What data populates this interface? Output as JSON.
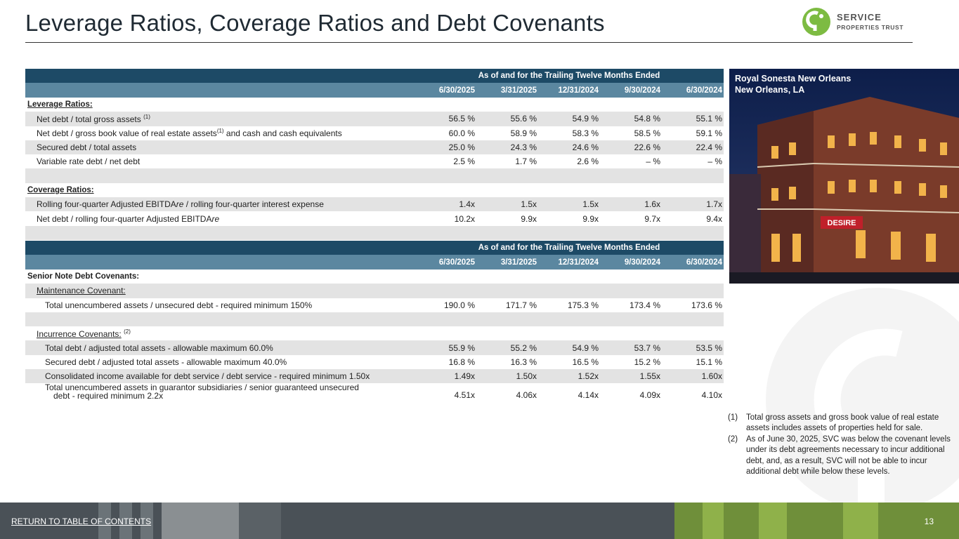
{
  "title": "Leverage Ratios, Coverage Ratios and Debt Covenants",
  "logo": {
    "line1": "SERVICE",
    "line2": "PROPERTIES TRUST"
  },
  "table1": {
    "header": "As of and for the Trailing Twelve Months Ended",
    "dates": [
      "6/30/2025",
      "3/31/2025",
      "12/31/2024",
      "9/30/2024",
      "6/30/2024"
    ],
    "leverage_title": "Leverage Ratios:",
    "leverage_rows": [
      {
        "label": "Net debt / total gross assets ",
        "sup": "(1)",
        "label_after": "",
        "values": [
          "56.5 %",
          "55.6 %",
          "54.9 %",
          "54.8 %",
          "55.1 %"
        ]
      },
      {
        "label": "Net debt / gross book value of real estate assets",
        "sup": "(1)",
        "label_after": " and cash and cash equivalents",
        "values": [
          "60.0 %",
          "58.9 %",
          "58.3 %",
          "58.5 %",
          "59.1 %"
        ]
      },
      {
        "label": "Secured debt / total assets",
        "sup": "",
        "label_after": "",
        "values": [
          "25.0 %",
          "24.3 %",
          "24.6 %",
          "22.6 %",
          "22.4 %"
        ]
      },
      {
        "label": "Variable rate debt / net debt",
        "sup": "",
        "label_after": "",
        "values": [
          "2.5 %",
          "1.7 %",
          "2.6 %",
          "– %",
          "– %"
        ]
      }
    ],
    "coverage_title": "Coverage Ratios:",
    "coverage_rows": [
      {
        "label": "Rolling four-quarter Adjusted EBITDA",
        "italic": "re",
        "label_after": " / rolling four-quarter interest expense",
        "values": [
          "1.4x",
          "1.5x",
          "1.5x",
          "1.6x",
          "1.7x"
        ]
      },
      {
        "label": "Net debt / rolling four-quarter Adjusted EBITDA",
        "italic": "re",
        "label_after": "",
        "values": [
          "10.2x",
          "9.9x",
          "9.9x",
          "9.7x",
          "9.4x"
        ]
      }
    ]
  },
  "table2": {
    "header": "As of and for the Trailing Twelve Months Ended",
    "dates": [
      "6/30/2025",
      "3/31/2025",
      "12/31/2024",
      "9/30/2024",
      "6/30/2024"
    ],
    "section_title": "Senior Note Debt Covenants:",
    "maintenance_title": "Maintenance Covenant:",
    "maintenance_rows": [
      {
        "label": "Total unencumbered assets / unsecured debt - required minimum 150%",
        "values": [
          "190.0 %",
          "171.7 %",
          "175.3 %",
          "173.4 %",
          "173.6 %"
        ]
      }
    ],
    "incurrence_title": "Incurrence Covenants:",
    "incurrence_sup": "(2)",
    "incurrence_rows": [
      {
        "label": "Total debt / adjusted total assets - allowable maximum 60.0%",
        "values": [
          "55.9 %",
          "55.2 %",
          "54.9 %",
          "53.7 %",
          "53.5 %"
        ]
      },
      {
        "label": "Secured debt / adjusted total assets - allowable maximum 40.0%",
        "values": [
          "16.8 %",
          "16.3 %",
          "16.5 %",
          "15.2 %",
          "15.1 %"
        ]
      },
      {
        "label": "Consolidated income available for debt service / debt service - required minimum 1.50x",
        "values": [
          "1.49x",
          "1.50x",
          "1.52x",
          "1.55x",
          "1.60x"
        ]
      },
      {
        "label": "Total unencumbered assets in guarantor subsidiaries / senior guaranteed unsecured",
        "label2": "debt - required minimum 2.2x",
        "values": [
          "4.51x",
          "4.06x",
          "4.14x",
          "4.09x",
          "4.10x"
        ]
      }
    ]
  },
  "photo": {
    "caption1": "Royal Sonesta New Orleans",
    "caption2": "New Orleans, LA",
    "sign": "DESIRE"
  },
  "footnotes": [
    {
      "key": "(1)",
      "text": "Total gross assets and gross book value of real estate assets includes assets of properties held for sale."
    },
    {
      "key": "(2)",
      "text": "As of June 30, 2025, SVC was below the covenant levels under its debt agreements necessary to incur additional debt, and, as a result, SVC will not be able to incur additional debt while below these levels."
    }
  ],
  "footer": {
    "link": "RETURN TO TABLE OF CONTENTS",
    "page": "13"
  },
  "colors": {
    "header_dark": "#1d4a66",
    "header_light": "#5b87a0",
    "shade": "#e3e3e3",
    "brand_green": "#7dbb42"
  }
}
